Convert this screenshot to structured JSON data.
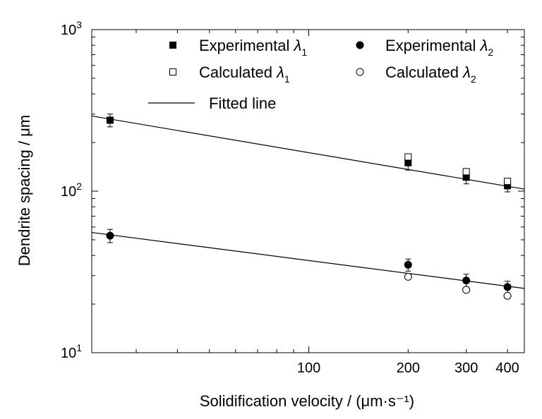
{
  "chart_data": {
    "type": "scatter",
    "scale": "log-log",
    "xlabel": "Solidification velocity / (μm·s⁻¹)",
    "ylabel": "Dendrite spacing / μm",
    "xlim": [
      22,
      450
    ],
    "ylim": [
      10,
      1000
    ],
    "x_ticks": [
      {
        "value": 100,
        "label": "100"
      },
      {
        "value": 200,
        "label": "200"
      },
      {
        "value": 300,
        "label": "300"
      },
      {
        "value": 400,
        "label": "400"
      }
    ],
    "y_ticks": [
      {
        "value": 10,
        "base": "10",
        "exp": "1"
      },
      {
        "value": 100,
        "base": "10",
        "exp": "2"
      },
      {
        "value": 1000,
        "base": "10",
        "exp": "3"
      }
    ],
    "legend_position": "top",
    "series": [
      {
        "name": "Experimental λ1",
        "name_main": "Experimental ",
        "symbol": "λ",
        "sub": "1",
        "marker": "filled-square",
        "x": [
          25,
          200,
          300,
          400
        ],
        "y": [
          275,
          150,
          122,
          108
        ],
        "err": [
          25,
          15,
          11,
          9
        ]
      },
      {
        "name": "Calculated λ1",
        "name_main": "Calculated ",
        "symbol": "λ",
        "sub": "1",
        "marker": "open-square",
        "x": [
          200,
          300,
          400
        ],
        "y": [
          163,
          132,
          115
        ]
      },
      {
        "name": "Experimental λ2",
        "name_main": "Experimental ",
        "symbol": "λ",
        "sub": "2",
        "marker": "filled-circle",
        "x": [
          25,
          200,
          300,
          400
        ],
        "y": [
          53,
          35,
          28,
          25.5
        ],
        "err": [
          5,
          3,
          2.6,
          2.2
        ]
      },
      {
        "name": "Calculated λ2",
        "name_main": "Calculated ",
        "symbol": "λ",
        "sub": "2",
        "marker": "open-circle",
        "x": [
          200,
          300,
          400
        ],
        "y": [
          29.5,
          24.5,
          22.5
        ]
      }
    ],
    "fitted_lines": [
      {
        "x": [
          22,
          450
        ],
        "y": [
          292,
          103
        ]
      },
      {
        "x": [
          22,
          450
        ],
        "y": [
          55.5,
          25
        ]
      }
    ],
    "fitted_legend": "Fitted line"
  }
}
